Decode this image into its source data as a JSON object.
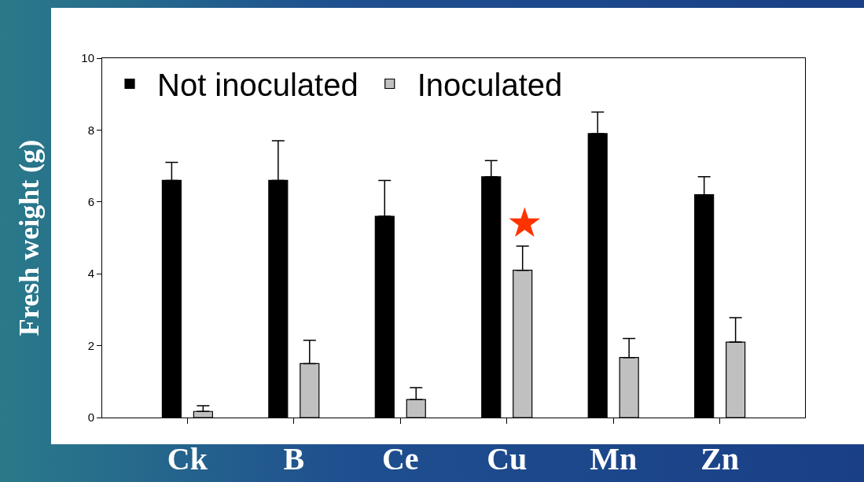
{
  "chart_data": {
    "type": "bar",
    "ylabel": "Fresh weight (g)",
    "categories": [
      "Ck",
      "B",
      "Ce",
      "Cu",
      "Mn",
      "Zn"
    ],
    "series": [
      {
        "name": "Not inoculated",
        "color": "#000000",
        "values": [
          6.6,
          6.6,
          5.6,
          6.7,
          7.9,
          6.2
        ],
        "errors": [
          [
            6.6,
            7.1
          ],
          [
            6.6,
            7.7
          ],
          [
            5.6,
            6.6
          ],
          [
            6.7,
            7.15
          ],
          [
            7.9,
            8.5
          ],
          [
            6.2,
            6.7
          ]
        ]
      },
      {
        "name": "Inoculated",
        "color": "#c0c0c0",
        "values": [
          0.17,
          1.5,
          0.5,
          4.1,
          1.67,
          2.1
        ],
        "errors": [
          [
            0.17,
            0.33
          ],
          [
            1.5,
            2.15
          ],
          [
            0.5,
            0.83
          ],
          [
            4.1,
            4.77
          ],
          [
            1.67,
            2.2
          ],
          [
            2.1,
            2.78
          ]
        ]
      }
    ],
    "annotations": [
      "★"
    ],
    "ylim": [
      0,
      10
    ],
    "yticks": [
      0,
      2,
      4,
      6,
      8,
      10
    ],
    "grid": false,
    "legend": "top"
  }
}
